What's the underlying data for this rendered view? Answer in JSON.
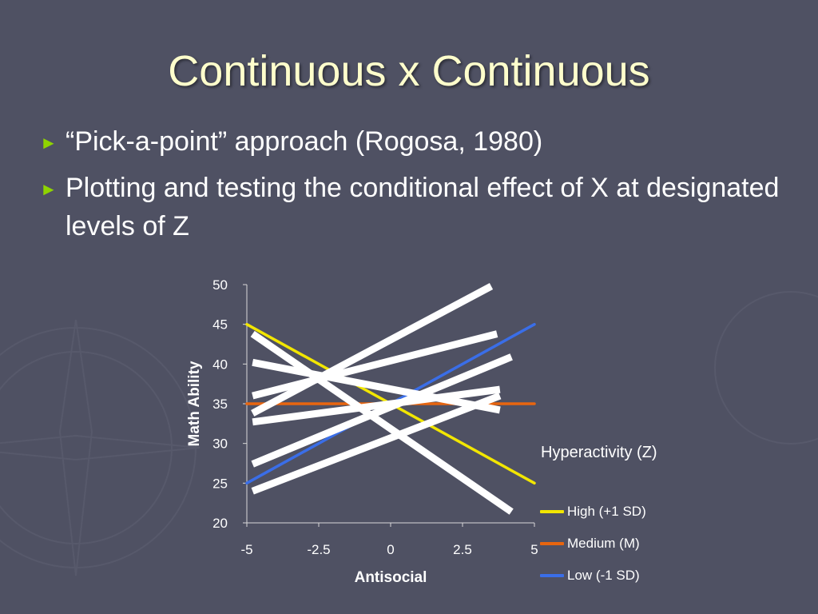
{
  "slide": {
    "title": "Continuous x Continuous",
    "bullets": [
      {
        "marker": "►",
        "text": "“Pick-a-point” approach (Rogosa, 1980)"
      },
      {
        "marker": "►",
        "text": "Plotting and testing the conditional effect of X at designated levels of Z"
      }
    ]
  },
  "colors": {
    "background": "#4f5163",
    "title": "#ffffcc",
    "bullet_marker": "#8fd400",
    "overlay_lines": "#ffffff"
  },
  "chart_data": {
    "type": "line",
    "xlabel": "Antisocial",
    "ylabel": "Math Ability",
    "xlim": [
      -5,
      5
    ],
    "ylim": [
      20,
      50
    ],
    "xticks": [
      "-5",
      "-2.5",
      "0",
      "2.5",
      "5"
    ],
    "yticks": [
      "20",
      "25",
      "30",
      "35",
      "40",
      "45",
      "50"
    ],
    "legend_title": "Hyperactivity (Z)",
    "legend_position": "right",
    "series": [
      {
        "name": "High (+1 SD)",
        "color": "#f2e600",
        "x": [
          -5,
          5
        ],
        "y": [
          45,
          25
        ]
      },
      {
        "name": "Medium (M)",
        "color": "#e8650f",
        "x": [
          -5,
          5
        ],
        "y": [
          35,
          35
        ]
      },
      {
        "name": "Low (-1 SD)",
        "color": "#3a6ee8",
        "x": [
          -5,
          5
        ],
        "y": [
          25,
          45
        ]
      }
    ],
    "overlay_lines": [
      {
        "x": [
          -4.8,
          3.5
        ],
        "y": [
          33.8,
          49.8
        ]
      },
      {
        "x": [
          -4.8,
          3.7
        ],
        "y": [
          36.0,
          43.8
        ]
      },
      {
        "x": [
          -4.8,
          3.8
        ],
        "y": [
          40.2,
          34.2
        ]
      },
      {
        "x": [
          -4.8,
          4.2
        ],
        "y": [
          43.8,
          21.4
        ]
      },
      {
        "x": [
          -4.8,
          4.2
        ],
        "y": [
          27.4,
          40.9
        ]
      },
      {
        "x": [
          -4.8,
          3.8
        ],
        "y": [
          32.7,
          36.8
        ]
      },
      {
        "x": [
          -4.8,
          3.8
        ],
        "y": [
          24.0,
          36.0
        ]
      }
    ]
  }
}
